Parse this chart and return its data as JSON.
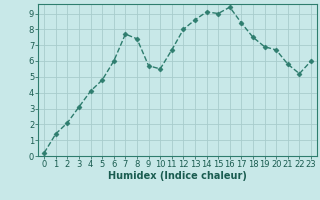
{
  "x": [
    0,
    1,
    2,
    3,
    4,
    5,
    6,
    7,
    8,
    9,
    10,
    11,
    12,
    13,
    14,
    15,
    16,
    17,
    18,
    19,
    20,
    21,
    22,
    23
  ],
  "y": [
    0.2,
    1.4,
    2.1,
    3.1,
    4.1,
    4.8,
    6.0,
    7.7,
    7.4,
    5.7,
    5.5,
    6.7,
    8.0,
    8.6,
    9.1,
    9.0,
    9.4,
    8.4,
    7.5,
    6.9,
    6.7,
    5.8,
    5.2,
    6.0
  ],
  "line_color": "#2e7d6e",
  "marker": "D",
  "marker_size": 2.5,
  "bg_color": "#c8e8e8",
  "grid_color": "#a8cccc",
  "xlabel": "Humidex (Indice chaleur)",
  "xlim": [
    -0.5,
    23.5
  ],
  "ylim": [
    0,
    9.6
  ],
  "yticks": [
    0,
    1,
    2,
    3,
    4,
    5,
    6,
    7,
    8,
    9
  ],
  "xticks": [
    0,
    1,
    2,
    3,
    4,
    5,
    6,
    7,
    8,
    9,
    10,
    11,
    12,
    13,
    14,
    15,
    16,
    17,
    18,
    19,
    20,
    21,
    22,
    23
  ],
  "tick_color": "#1a5c50",
  "label_fontsize": 7,
  "tick_fontsize": 6,
  "linewidth": 1.0,
  "spine_color": "#2e7d6e"
}
